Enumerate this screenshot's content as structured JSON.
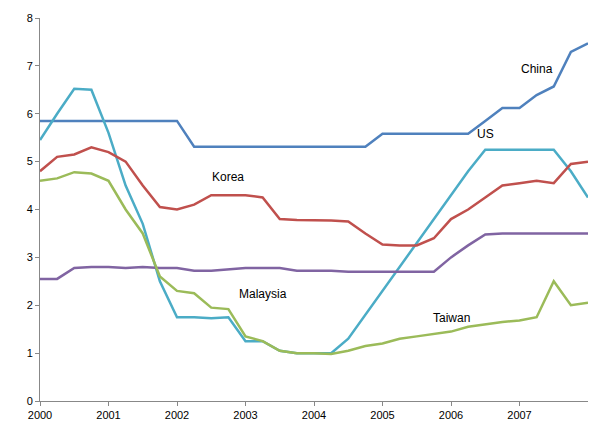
{
  "chart_data": {
    "type": "line",
    "x": [
      2000,
      2000.25,
      2000.5,
      2000.75,
      2001,
      2001.25,
      2001.5,
      2001.75,
      2002,
      2002.25,
      2002.5,
      2002.75,
      2003,
      2003.25,
      2003.5,
      2003.75,
      2004,
      2004.25,
      2004.5,
      2004.75,
      2005,
      2005.25,
      2005.5,
      2005.75,
      2006,
      2006.25,
      2006.5,
      2006.75,
      2007,
      2007.25,
      2007.5,
      2007.75,
      2008
    ],
    "series": [
      {
        "name": "China",
        "color": "#4f81bd",
        "values": [
          5.85,
          5.85,
          5.85,
          5.85,
          5.85,
          5.85,
          5.85,
          5.85,
          5.85,
          5.31,
          5.31,
          5.31,
          5.31,
          5.31,
          5.31,
          5.31,
          5.31,
          5.31,
          5.31,
          5.31,
          5.58,
          5.58,
          5.58,
          5.58,
          5.58,
          5.58,
          5.85,
          6.12,
          6.12,
          6.39,
          6.57,
          7.29,
          7.47
        ]
      },
      {
        "name": "US",
        "color": "#4bacc6",
        "values": [
          5.45,
          6.0,
          6.52,
          6.5,
          5.6,
          4.5,
          3.7,
          2.5,
          1.75,
          1.75,
          1.73,
          1.75,
          1.25,
          1.25,
          1.05,
          1.0,
          1.0,
          1.0,
          1.3,
          1.8,
          2.3,
          2.8,
          3.3,
          3.8,
          4.3,
          4.8,
          5.25,
          5.25,
          5.25,
          5.25,
          5.25,
          4.8,
          4.25
        ]
      },
      {
        "name": "Korea",
        "color": "#c0504d",
        "values": [
          4.8,
          5.1,
          5.15,
          5.3,
          5.2,
          5.0,
          4.5,
          4.05,
          4.0,
          4.1,
          4.3,
          4.3,
          4.3,
          4.25,
          3.8,
          3.78,
          3.78,
          3.77,
          3.75,
          3.5,
          3.27,
          3.25,
          3.25,
          3.4,
          3.8,
          4.0,
          4.25,
          4.5,
          4.55,
          4.6,
          4.55,
          4.95,
          5.0
        ]
      },
      {
        "name": "Malaysia",
        "color": "#8064a2",
        "values": [
          2.55,
          2.55,
          2.78,
          2.8,
          2.8,
          2.78,
          2.8,
          2.78,
          2.78,
          2.72,
          2.72,
          2.75,
          2.78,
          2.78,
          2.78,
          2.72,
          2.72,
          2.72,
          2.7,
          2.7,
          2.7,
          2.7,
          2.7,
          2.7,
          3.0,
          3.25,
          3.48,
          3.5,
          3.5,
          3.5,
          3.5,
          3.5,
          3.5
        ]
      },
      {
        "name": "Taiwan",
        "color": "#9bbb59",
        "values": [
          4.6,
          4.65,
          4.78,
          4.75,
          4.6,
          4.0,
          3.5,
          2.6,
          2.3,
          2.25,
          1.95,
          1.92,
          1.35,
          1.25,
          1.05,
          1.0,
          1.0,
          0.98,
          1.05,
          1.15,
          1.2,
          1.3,
          1.35,
          1.4,
          1.45,
          1.55,
          1.6,
          1.65,
          1.68,
          1.75,
          2.5,
          2.0,
          2.05
        ]
      }
    ],
    "xlim": [
      2000,
      2008
    ],
    "xticks": [
      2000,
      2001,
      2002,
      2003,
      2004,
      2005,
      2006,
      2007
    ],
    "ylim": [
      0,
      8
    ],
    "yticks": [
      0,
      1,
      2,
      3,
      4,
      5,
      6,
      7,
      8
    ],
    "grid": false
  }
}
